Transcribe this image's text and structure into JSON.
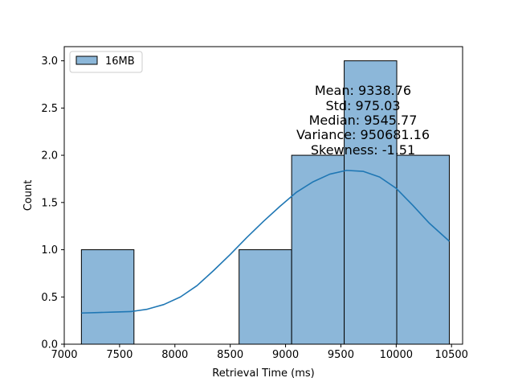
{
  "chart_data": {
    "type": "bar",
    "title": "",
    "xlabel": "Retrieval Time (ms)",
    "ylabel": "Count",
    "xlim": [
      7000,
      10600
    ],
    "ylim": [
      0,
      3.15
    ],
    "xticks": [
      7000,
      7500,
      8000,
      8500,
      9000,
      9500,
      10000,
      10500
    ],
    "xtick_labels": [
      "7000",
      "7500",
      "8000",
      "8500",
      "9000",
      "9500",
      "10000",
      "10500"
    ],
    "yticks": [
      0.0,
      0.5,
      1.0,
      1.5,
      2.0,
      2.5,
      3.0
    ],
    "ytick_labels": [
      "0.0",
      "0.5",
      "1.0",
      "1.5",
      "2.0",
      "2.5",
      "3.0"
    ],
    "grid": false,
    "legend": {
      "position": "top-left",
      "entries": [
        "16MB"
      ]
    },
    "series": [
      {
        "name": "16MB",
        "color": "#1f77b4",
        "bar_fill": "#8cb7d9",
        "bins": [
          {
            "x0": 7155,
            "x1": 7630,
            "count": 1
          },
          {
            "x0": 7630,
            "x1": 8105,
            "count": 0
          },
          {
            "x0": 8105,
            "x1": 8580,
            "count": 0
          },
          {
            "x0": 8580,
            "x1": 9055,
            "count": 1
          },
          {
            "x0": 9055,
            "x1": 9530,
            "count": 2
          },
          {
            "x0": 9530,
            "x1": 10005,
            "count": 3
          },
          {
            "x0": 10005,
            "x1": 10480,
            "count": 2
          }
        ],
        "kde": {
          "x": [
            7155,
            7300,
            7450,
            7600,
            7750,
            7900,
            8050,
            8200,
            8350,
            8500,
            8650,
            8800,
            8950,
            9100,
            9250,
            9400,
            9550,
            9700,
            9850,
            10000,
            10150,
            10300,
            10480
          ],
          "y": [
            0.33,
            0.335,
            0.34,
            0.345,
            0.37,
            0.42,
            0.5,
            0.62,
            0.78,
            0.95,
            1.13,
            1.3,
            1.46,
            1.61,
            1.72,
            1.8,
            1.84,
            1.83,
            1.77,
            1.65,
            1.47,
            1.28,
            1.09
          ]
        }
      }
    ],
    "annotations": [
      "Mean: 9338.76",
      "Std: 975.03",
      "Median: 9545.77",
      "Variance: 950681.16",
      "Skewness: -1.51"
    ]
  }
}
